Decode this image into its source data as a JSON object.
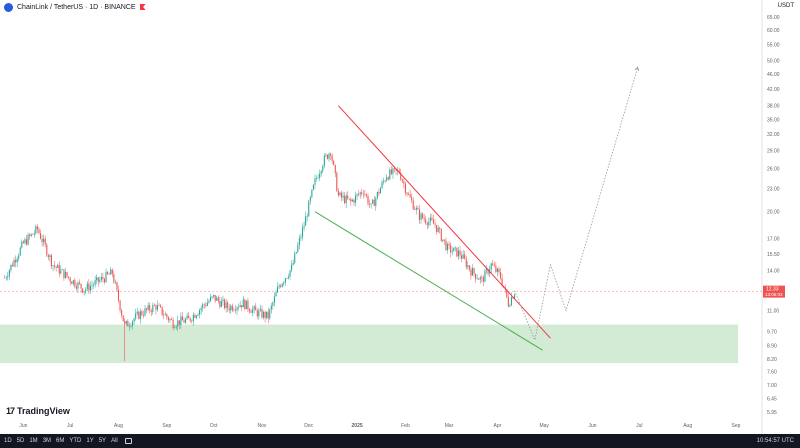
{
  "header": {
    "title": "ChainLink / TetherUS · 1D · BINANCE",
    "currency": "USDT"
  },
  "watermark": "TradingView",
  "bottom_bar": {
    "timeframes": [
      "1D",
      "5D",
      "1M",
      "3M",
      "6M",
      "YTD",
      "1Y",
      "5Y",
      "All"
    ],
    "clock": "10:54:57 UTC"
  },
  "colors": {
    "up": "#26a69a",
    "down": "#ef5350",
    "resistance": "#f23645",
    "support": "#4caf50",
    "zone": "#c8e6c9",
    "projection": "#9598a1"
  },
  "chart_data": {
    "type": "candlestick",
    "y_scale": "log",
    "price_axis": [
      "65.00",
      "60.00",
      "55.00",
      "50.00",
      "46.00",
      "42.00",
      "38.00",
      "35.00",
      "32.00",
      "29.00",
      "26.00",
      "23.00",
      "20.00",
      "17.00",
      "15.50",
      "14.00",
      "12.50",
      "11.00",
      "9.70",
      "8.90",
      "8.20",
      "7.60",
      "7.00",
      "6.45",
      "5.95"
    ],
    "time_axis": [
      "Jun",
      "Jul",
      "Aug",
      "Sep",
      "Oct",
      "Nov",
      "Dec",
      "2025",
      "Feb",
      "Mar",
      "Apr",
      "May",
      "Jun",
      "Jul",
      "Aug",
      "Sep"
    ],
    "current_price": {
      "price": "12.33",
      "countdown": "13:05:03"
    },
    "price_path": [
      {
        "date": "2024-05-20",
        "price": 13.4
      },
      {
        "date": "2024-06-01",
        "price": 16.5
      },
      {
        "date": "2024-06-10",
        "price": 18.0
      },
      {
        "date": "2024-06-20",
        "price": 14.5
      },
      {
        "date": "2024-07-01",
        "price": 13.3
      },
      {
        "date": "2024-07-10",
        "price": 12.5
      },
      {
        "date": "2024-07-20",
        "price": 13.2
      },
      {
        "date": "2024-07-28",
        "price": 13.8
      },
      {
        "date": "2024-08-05",
        "price": 10.0
      },
      {
        "date": "2024-08-15",
        "price": 10.8
      },
      {
        "date": "2024-08-25",
        "price": 11.3
      },
      {
        "date": "2024-09-05",
        "price": 10.2
      },
      {
        "date": "2024-09-15",
        "price": 10.4
      },
      {
        "date": "2024-09-25",
        "price": 11.4
      },
      {
        "date": "2024-10-01",
        "price": 11.9
      },
      {
        "date": "2024-10-10",
        "price": 11.2
      },
      {
        "date": "2024-10-20",
        "price": 11.5
      },
      {
        "date": "2024-10-28",
        "price": 10.9
      },
      {
        "date": "2024-11-05",
        "price": 10.6
      },
      {
        "date": "2024-11-12",
        "price": 12.8
      },
      {
        "date": "2024-11-20",
        "price": 14.2
      },
      {
        "date": "2024-11-28",
        "price": 18.5
      },
      {
        "date": "2024-12-05",
        "price": 24.0
      },
      {
        "date": "2024-12-10",
        "price": 27.0
      },
      {
        "date": "2024-12-15",
        "price": 29.0
      },
      {
        "date": "2024-12-20",
        "price": 22.0
      },
      {
        "date": "2024-12-28",
        "price": 21.2
      },
      {
        "date": "2025-01-05",
        "price": 22.8
      },
      {
        "date": "2025-01-10",
        "price": 20.5
      },
      {
        "date": "2025-01-20",
        "price": 25.0
      },
      {
        "date": "2025-01-28",
        "price": 25.5
      },
      {
        "date": "2025-02-03",
        "price": 22.0
      },
      {
        "date": "2025-02-10",
        "price": 19.5
      },
      {
        "date": "2025-02-20",
        "price": 18.5
      },
      {
        "date": "2025-02-28",
        "price": 16.0
      },
      {
        "date": "2025-03-08",
        "price": 15.5
      },
      {
        "date": "2025-03-15",
        "price": 14.0
      },
      {
        "date": "2025-03-22",
        "price": 13.2
      },
      {
        "date": "2025-03-28",
        "price": 14.5
      },
      {
        "date": "2025-04-03",
        "price": 13.5
      },
      {
        "date": "2025-04-08",
        "price": 11.5
      },
      {
        "date": "2025-04-12",
        "price": 12.33
      }
    ],
    "resistance_line": [
      {
        "date": "2024-12-20",
        "price": 38.0
      },
      {
        "date": "2025-05-05",
        "price": 9.3
      }
    ],
    "support_line": [
      {
        "date": "2024-12-05",
        "price": 20.0
      },
      {
        "date": "2025-04-30",
        "price": 8.65
      }
    ],
    "demand_zone": {
      "high": 10.1,
      "low": 8.0
    },
    "projection": [
      {
        "date": "2025-04-12",
        "price": 12.4
      },
      {
        "date": "2025-04-25",
        "price": 9.2
      },
      {
        "date": "2025-05-05",
        "price": 14.5
      },
      {
        "date": "2025-05-15",
        "price": 11.0
      },
      {
        "date": "2025-06-30",
        "price": 48.0
      }
    ],
    "grid": false
  }
}
